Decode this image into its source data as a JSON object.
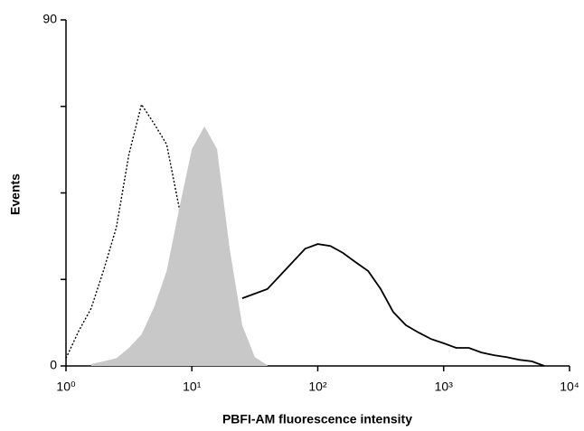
{
  "chart_data": {
    "type": "histogram-overlay",
    "xlabel": "PBFI-AM fluorescence intensity",
    "ylabel": "Events",
    "xscale": "log",
    "xlim": [
      1,
      10000
    ],
    "ylim": [
      0,
      90
    ],
    "xticks": [
      {
        "value": 1,
        "label": "10⁰"
      },
      {
        "value": 10,
        "label": "10¹"
      },
      {
        "value": 100,
        "label": "10²"
      },
      {
        "value": 1000,
        "label": "10³"
      },
      {
        "value": 10000,
        "label": "10⁴"
      }
    ],
    "yticks": [
      0,
      90
    ],
    "yminorticks": [
      22.5,
      45,
      67.5
    ],
    "x": [
      1,
      1.259,
      1.585,
      1.995,
      2.512,
      3.162,
      3.981,
      5.012,
      6.31,
      7.943,
      10,
      12.59,
      15.85,
      19.95,
      25.12,
      31.62,
      39.81,
      50.12,
      63.1,
      79.43,
      100,
      125.9,
      158.5,
      199.5,
      251.2,
      316.2,
      398.1,
      501.2,
      631,
      794.3,
      1000,
      1259,
      1585,
      1995,
      2512,
      3162,
      3981,
      5012,
      6310
    ],
    "series": [
      {
        "style": "dotted",
        "color": "#000000",
        "values": [
          2,
          9,
          15,
          25,
          36,
          55,
          68,
          63,
          57.6,
          41,
          17.6,
          7,
          1.6,
          0.5,
          null,
          null,
          null,
          null,
          null,
          null,
          null,
          null,
          null,
          null,
          null,
          null,
          null,
          null,
          null,
          null,
          null,
          null,
          null,
          null,
          null,
          null,
          null,
          null,
          null
        ]
      },
      {
        "style": "filled",
        "color": "#c8c8c8",
        "values": [
          null,
          null,
          0.5,
          1.2,
          2,
          4.7,
          8.2,
          15.3,
          24.7,
          41,
          56.4,
          62.3,
          56.4,
          30.5,
          10.6,
          2.3,
          0.2,
          null,
          null,
          null,
          null,
          null,
          null,
          null,
          null,
          null,
          null,
          null,
          null,
          null,
          null,
          null,
          null,
          null,
          null,
          null,
          null,
          null,
          null
        ]
      },
      {
        "style": "solid",
        "color": "#000000",
        "values": [
          null,
          null,
          null,
          null,
          null,
          null,
          null,
          null,
          null,
          null,
          null,
          null,
          null,
          null,
          17.6,
          18.8,
          20,
          23.5,
          27,
          30.5,
          31.7,
          31.2,
          29.4,
          27,
          24.7,
          20,
          14,
          10.6,
          8.7,
          7,
          5.9,
          4.7,
          4.7,
          3.5,
          2.8,
          2.3,
          1.6,
          1.2,
          0
        ]
      }
    ]
  }
}
